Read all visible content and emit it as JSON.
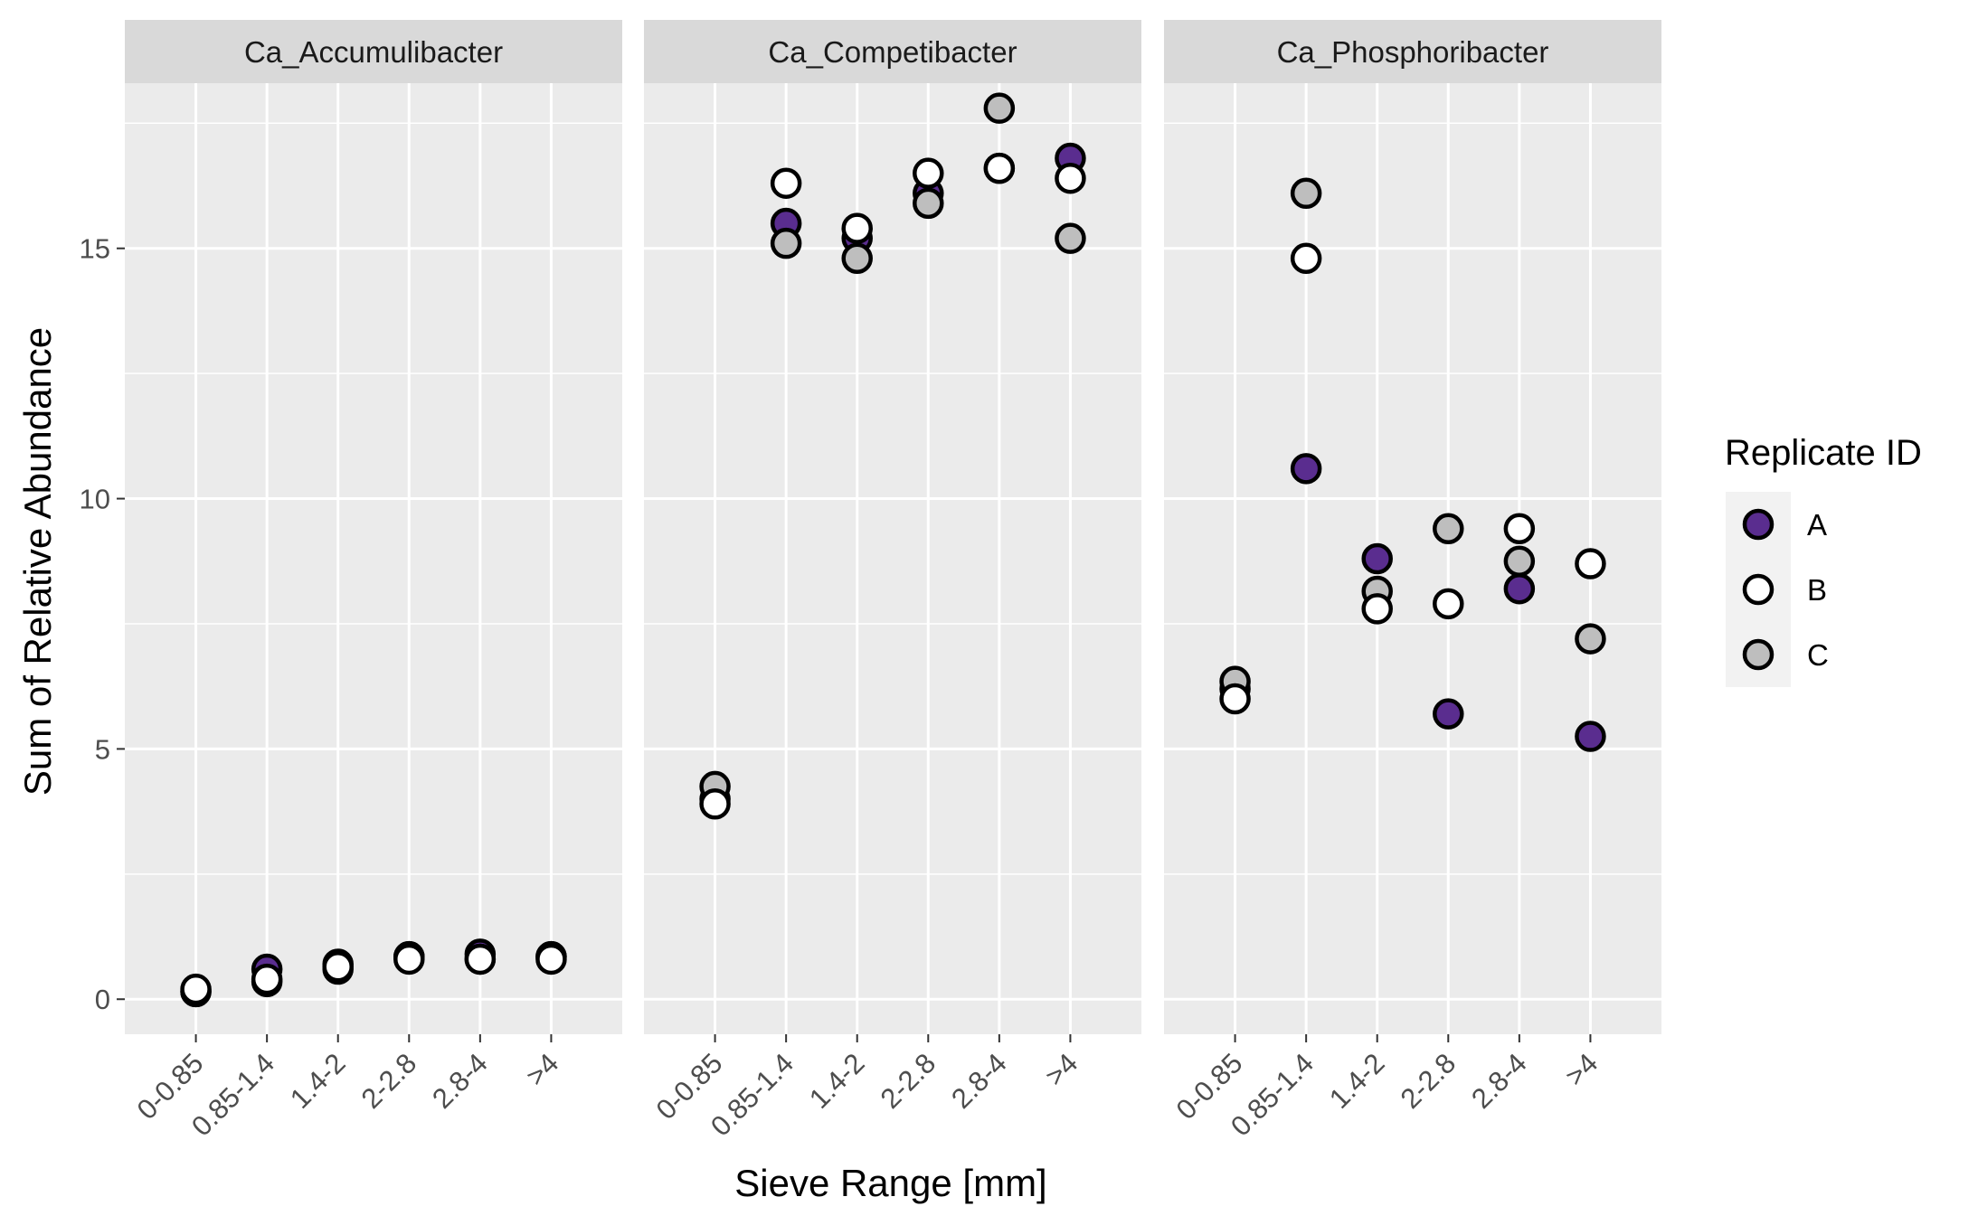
{
  "chart_data": {
    "type": "scatter",
    "facet_panels": [
      "Ca_Accumulibacter",
      "Ca_Competibacter",
      "Ca_Phosphoribacter"
    ],
    "categories": [
      "0-0.85",
      "0.85-1.4",
      "1.4-2",
      "2-2.8",
      "2.8-4",
      ">4"
    ],
    "xlabel": "Sieve Range [mm]",
    "ylabel": "Sum of Relative Abundance",
    "ylim": [
      -0.7,
      18.3
    ],
    "y_ticks": [
      0,
      5,
      10,
      15
    ],
    "grid": true,
    "legend": {
      "title": "Replicate ID",
      "position": "right",
      "entries": [
        "A",
        "B",
        "C"
      ]
    },
    "series": [
      {
        "name": "A",
        "color": "#5a2d8f",
        "panels": {
          "Ca_Accumulibacter": [
            0.15,
            0.6,
            0.7,
            0.85,
            0.9,
            0.85
          ],
          "Ca_Competibacter": [
            4.0,
            15.5,
            15.2,
            16.1,
            16.6,
            16.8
          ],
          "Ca_Phosphoribacter": [
            6.2,
            10.6,
            8.8,
            5.7,
            8.2,
            5.25
          ]
        }
      },
      {
        "name": "B",
        "color": "#ffffff",
        "panels": {
          "Ca_Accumulibacter": [
            0.2,
            0.4,
            0.65,
            0.8,
            0.8,
            0.8
          ],
          "Ca_Competibacter": [
            3.9,
            16.3,
            15.4,
            16.5,
            16.6,
            16.4
          ],
          "Ca_Phosphoribacter": [
            6.0,
            14.8,
            7.8,
            7.9,
            9.4,
            8.7
          ]
        }
      },
      {
        "name": "C",
        "color": "#bebebe",
        "panels": {
          "Ca_Accumulibacter": [
            0.15,
            0.35,
            0.6,
            0.85,
            0.8,
            0.85
          ],
          "Ca_Competibacter": [
            4.25,
            15.1,
            14.8,
            15.9,
            17.8,
            15.2
          ],
          "Ca_Phosphoribacter": [
            6.35,
            16.1,
            8.15,
            9.4,
            8.75,
            7.2
          ]
        }
      }
    ]
  }
}
